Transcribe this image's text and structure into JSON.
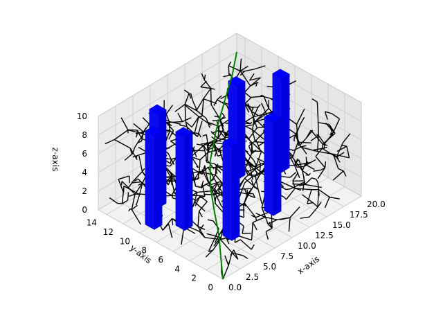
{
  "chart_data": {
    "type": "3d-line-plot",
    "title": "",
    "xlabel": "x-axis",
    "ylabel": "y-axis",
    "zlabel": "z-axis",
    "xlim": [
      0,
      20
    ],
    "ylim": [
      0,
      15
    ],
    "zlim": [
      0,
      10
    ],
    "x_ticks": [
      "0.0",
      "2.5",
      "5.0",
      "7.5",
      "10.0",
      "12.5",
      "15.0",
      "17.5",
      "20.0"
    ],
    "y_ticks": [
      "0",
      "2",
      "4",
      "6",
      "8",
      "10",
      "12",
      "14"
    ],
    "z_ticks": [
      "0",
      "2",
      "4",
      "6",
      "8",
      "10"
    ],
    "grid": true,
    "tree": {
      "color": "#000000",
      "start": [
        0,
        0,
        0
      ],
      "description_edges": "dense random exploration tree"
    },
    "obstacles": {
      "color": "#0000ff",
      "columns": [
        {
          "x": 2,
          "y": 10,
          "z0": 0,
          "z1": 10
        },
        {
          "x": 4,
          "y": 8,
          "z0": 0,
          "z1": 10
        },
        {
          "x": 5,
          "y": 12,
          "z0": 0,
          "z1": 10
        },
        {
          "x": 6,
          "y": 4,
          "z0": 0,
          "z1": 10
        },
        {
          "x": 12,
          "y": 4,
          "z0": 0,
          "z1": 10
        },
        {
          "x": 14,
          "y": 10,
          "z0": 0,
          "z1": 10
        },
        {
          "x": 18,
          "y": 8,
          "z0": 0,
          "z1": 10
        }
      ]
    },
    "path": {
      "color": "#008000",
      "points": [
        [
          0,
          0,
          0
        ],
        [
          1.5,
          1.5,
          1
        ],
        [
          3,
          3,
          2
        ],
        [
          4.5,
          4.8,
          3
        ],
        [
          6,
          6.5,
          4
        ],
        [
          8,
          8.2,
          5
        ],
        [
          11,
          10,
          6
        ],
        [
          14,
          11.5,
          7
        ],
        [
          17,
          13,
          8
        ],
        [
          20,
          15,
          8
        ]
      ]
    }
  }
}
